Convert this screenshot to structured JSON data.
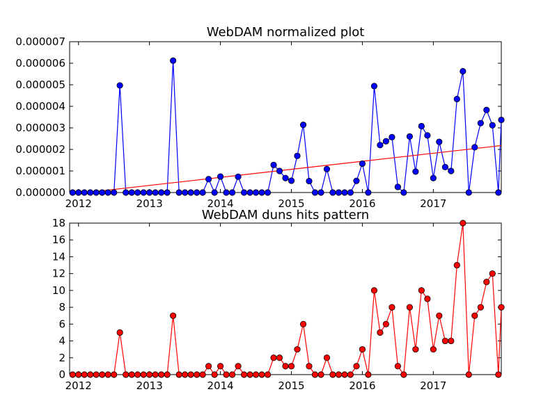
{
  "chart_data": [
    {
      "type": "line",
      "title": "WebDAM normalized plot",
      "xlabel": "",
      "ylabel": "",
      "x_tick_labels": [
        "2012",
        "2013",
        "2014",
        "2015",
        "2016",
        "2017"
      ],
      "y_tick_labels": [
        "0.000000",
        "0.000001",
        "0.000002",
        "0.000003",
        "0.000004",
        "0.000005",
        "0.000006",
        "0.000007"
      ],
      "xlim": [
        2011.875,
        2017.958
      ],
      "ylim": [
        0,
        7e-06
      ],
      "grid": false,
      "series": [
        {
          "color": "#0000ff",
          "marker": "circle",
          "x": [
            2011.917,
            2012.0,
            2012.083,
            2012.167,
            2012.25,
            2012.333,
            2012.417,
            2012.5,
            2012.583,
            2012.667,
            2012.75,
            2012.833,
            2012.917,
            2013.0,
            2013.083,
            2013.167,
            2013.25,
            2013.333,
            2013.417,
            2013.5,
            2013.583,
            2013.667,
            2013.75,
            2013.833,
            2013.917,
            2014.0,
            2014.083,
            2014.167,
            2014.25,
            2014.333,
            2014.417,
            2014.5,
            2014.583,
            2014.667,
            2014.75,
            2014.833,
            2014.917,
            2015.0,
            2015.083,
            2015.167,
            2015.25,
            2015.333,
            2015.417,
            2015.5,
            2015.583,
            2015.667,
            2015.75,
            2015.833,
            2015.917,
            2016.0,
            2016.083,
            2016.167,
            2016.25,
            2016.333,
            2016.417,
            2016.5,
            2016.583,
            2016.667,
            2016.75,
            2016.833,
            2016.917,
            2017.0,
            2017.083,
            2017.167,
            2017.25,
            2017.333,
            2017.417,
            2017.5,
            2017.583,
            2017.667,
            2017.75,
            2017.833,
            2017.917,
            2017.958
          ],
          "y": [
            0,
            0,
            0,
            0,
            0,
            0,
            0,
            0,
            4.97e-06,
            0,
            0,
            0,
            0,
            0,
            0,
            0,
            0,
            6.12e-06,
            0,
            0,
            0,
            0,
            0,
            6.2e-07,
            0,
            7.4e-07,
            0,
            0,
            7.3e-07,
            0,
            0,
            0,
            0,
            0,
            1.28e-06,
            1e-06,
            6.7e-07,
            5.5e-07,
            1.7e-06,
            3.14e-06,
            5.3e-07,
            0,
            0,
            1.09e-06,
            0,
            0,
            0,
            0,
            5.4e-07,
            1.34e-06,
            0,
            4.94e-06,
            2.2e-06,
            2.38e-06,
            2.57e-06,
            2.6e-07,
            0,
            2.6e-06,
            9.7e-07,
            3.08e-06,
            2.65e-06,
            6.7e-07,
            2.35e-06,
            1.18e-06,
            1e-06,
            4.34e-06,
            5.63e-06,
            0,
            2.1e-06,
            3.22e-06,
            3.83e-06,
            3.12e-06,
            0,
            3.37e-06
          ]
        },
        {
          "color": "#ff0000",
          "marker": "none",
          "x": [
            2011.875,
            2017.958
          ],
          "y": [
            -9e-08,
            2.18e-06
          ]
        }
      ]
    },
    {
      "type": "line",
      "title": "WebDAM duns hits pattern",
      "xlabel": "",
      "ylabel": "",
      "x_tick_labels": [
        "2012",
        "2013",
        "2014",
        "2015",
        "2016",
        "2017"
      ],
      "y_tick_labels": [
        "0",
        "2",
        "4",
        "6",
        "8",
        "10",
        "12",
        "14",
        "16",
        "18"
      ],
      "xlim": [
        2011.875,
        2017.958
      ],
      "ylim": [
        0,
        18
      ],
      "grid": false,
      "series": [
        {
          "color": "#ff0000",
          "marker": "circle",
          "x": [
            2011.917,
            2012.0,
            2012.083,
            2012.167,
            2012.25,
            2012.333,
            2012.417,
            2012.5,
            2012.583,
            2012.667,
            2012.75,
            2012.833,
            2012.917,
            2013.0,
            2013.083,
            2013.167,
            2013.25,
            2013.333,
            2013.417,
            2013.5,
            2013.583,
            2013.667,
            2013.75,
            2013.833,
            2013.917,
            2014.0,
            2014.083,
            2014.167,
            2014.25,
            2014.333,
            2014.417,
            2014.5,
            2014.583,
            2014.667,
            2014.75,
            2014.833,
            2014.917,
            2015.0,
            2015.083,
            2015.167,
            2015.25,
            2015.333,
            2015.417,
            2015.5,
            2015.583,
            2015.667,
            2015.75,
            2015.833,
            2015.917,
            2016.0,
            2016.083,
            2016.167,
            2016.25,
            2016.333,
            2016.417,
            2016.5,
            2016.583,
            2016.667,
            2016.75,
            2016.833,
            2016.917,
            2017.0,
            2017.083,
            2017.167,
            2017.25,
            2017.333,
            2017.417,
            2017.5,
            2017.583,
            2017.667,
            2017.75,
            2017.833,
            2017.917,
            2017.958
          ],
          "y": [
            0,
            0,
            0,
            0,
            0,
            0,
            0,
            0,
            5,
            0,
            0,
            0,
            0,
            0,
            0,
            0,
            0,
            7,
            0,
            0,
            0,
            0,
            0,
            1,
            0,
            1,
            0,
            0,
            1,
            0,
            0,
            0,
            0,
            0,
            2,
            2,
            1,
            1,
            3,
            6,
            1,
            0,
            0,
            2,
            0,
            0,
            0,
            0,
            1,
            3,
            0,
            10,
            5,
            6,
            8,
            1,
            0,
            8,
            3,
            10,
            9,
            3,
            7,
            4,
            4,
            13,
            18,
            0,
            7,
            8,
            11,
            12,
            0,
            8
          ]
        }
      ]
    }
  ]
}
